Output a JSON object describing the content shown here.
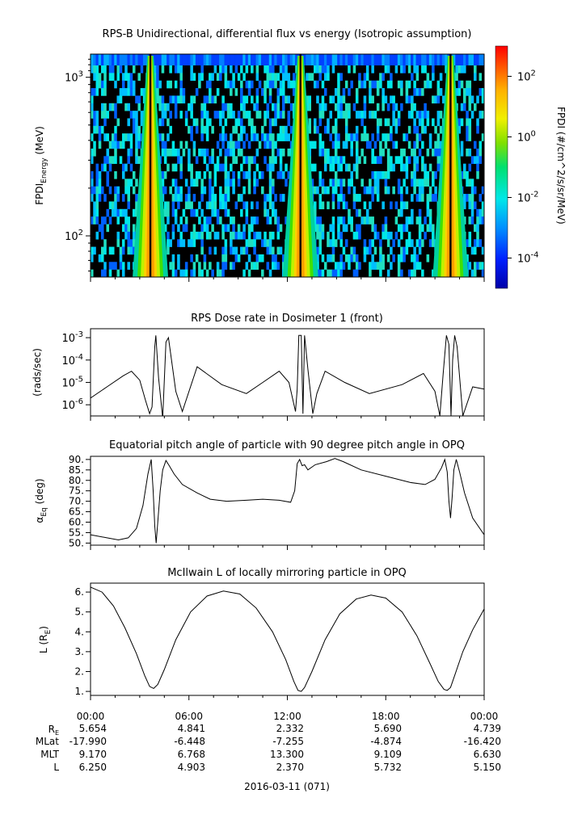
{
  "panels": {
    "spectrogram": {
      "title": "RPS-B  Unidirectional, differential flux vs energy (Isotropic assumption)",
      "ylabel_main": "FPDI",
      "ylabel_sub": "Energy",
      "ylabel_unit": " (MeV)",
      "yticks": [
        {
          "label": "10",
          "exp": "2",
          "value": 100
        },
        {
          "label": "10",
          "exp": "3",
          "value": 1000
        }
      ],
      "colorbar_label": "FPDI (#/cm^2/s/sr/MeV)",
      "colorbar_ticks": [
        {
          "label": "10",
          "exp": "-4",
          "value": -4
        },
        {
          "label": "10",
          "exp": "-2",
          "value": -2
        },
        {
          "label": "10",
          "exp": "0",
          "value": 0
        },
        {
          "label": "10",
          "exp": "2",
          "value": 2
        }
      ]
    },
    "dose": {
      "title": "RPS  Dose rate in Dosimeter 1 (front)",
      "ylabel": "(rads/sec)",
      "yticks": [
        {
          "label": "10",
          "exp": "-6",
          "value": -6
        },
        {
          "label": "10",
          "exp": "-5",
          "value": -5
        },
        {
          "label": "10",
          "exp": "-4",
          "value": -4
        },
        {
          "label": "10",
          "exp": "-3",
          "value": -3
        }
      ]
    },
    "pitch": {
      "title": "Equatorial pitch angle of particle with 90 degree pitch angle in OPQ",
      "ylabel_main": "α",
      "ylabel_sub": "Eq",
      "ylabel_unit": " (deg)",
      "yticks": [
        "50.",
        "55.",
        "60.",
        "65.",
        "70.",
        "75.",
        "80.",
        "85.",
        "90."
      ]
    },
    "lshell": {
      "title": "McIlwain L of locally mirroring particle in OPQ",
      "ylabel_main": "L (R",
      "ylabel_sub": "E",
      "ylabel_unit": ")",
      "yticks": [
        "1.",
        "2.",
        "3.",
        "4.",
        "5.",
        "6."
      ]
    }
  },
  "x_axis": {
    "ticks": [
      "00:00",
      "06:00",
      "12:00",
      "18:00",
      "00:00"
    ],
    "date": "2016-03-11 (071)",
    "ephemeris": [
      {
        "label": "R",
        "sub": "E",
        "values": [
          "5.654",
          "4.841",
          "2.332",
          "5.690",
          "4.739"
        ]
      },
      {
        "label": "MLat",
        "sub": "",
        "values": [
          "-17.990",
          "-6.448",
          "-7.255",
          "-4.874",
          "-16.420"
        ]
      },
      {
        "label": "MLT",
        "sub": "",
        "values": [
          "9.170",
          "6.768",
          "13.300",
          "9.109",
          "6.630"
        ]
      },
      {
        "label": "L",
        "sub": "",
        "values": [
          "6.250",
          "4.903",
          "2.370",
          "5.732",
          "5.150"
        ]
      }
    ]
  },
  "chart_data": [
    {
      "type": "heatmap",
      "title": "RPS-B  Unidirectional, differential flux vs energy (Isotropic assumption)",
      "xlabel": "",
      "ylabel": "FPDI Energy (MeV)",
      "y_scale": "log",
      "ylim": [
        55,
        1400
      ],
      "xlim_hours": [
        0,
        24
      ],
      "colorbar": {
        "label": "FPDI (#/cm^2/s/sr/MeV)",
        "scale": "log",
        "range_exp": [
          -5,
          3
        ]
      },
      "perigee_peaks_hours": [
        3.65,
        12.8,
        21.95
      ]
    },
    {
      "type": "line",
      "title": "RPS  Dose rate in Dosimeter 1 (front)",
      "ylabel": "(rads/sec)",
      "y_scale": "log",
      "ylim_exp": [
        -6.5,
        -2.6
      ],
      "x": [
        0,
        1,
        2,
        2.5,
        3,
        3.35,
        3.6,
        3.75,
        3.85,
        3.92,
        3.98,
        4.15,
        4.4,
        4.6,
        4.75,
        5.2,
        5.6,
        6.5,
        8,
        9.5,
        10.5,
        11.5,
        12.1,
        12.5,
        12.6,
        12.7,
        12.85,
        12.95,
        13.05,
        13.25,
        13.55,
        13.8,
        14.3,
        15.5,
        17,
        19,
        20.3,
        21.0,
        21.3,
        21.5,
        21.7,
        21.85,
        21.98,
        22.08,
        22.2,
        22.35,
        22.7,
        23.3,
        24
      ],
      "values_log10": [
        -5.7,
        -5.2,
        -4.7,
        -4.5,
        -4.9,
        -5.8,
        -6.4,
        -6.1,
        -4.5,
        -3.4,
        -2.9,
        -4.8,
        -6.6,
        -3.2,
        -3.0,
        -5.4,
        -6.3,
        -4.3,
        -5.1,
        -5.5,
        -5.0,
        -4.5,
        -5.0,
        -6.3,
        -5.3,
        -2.9,
        -2.9,
        -6.4,
        -2.9,
        -4.4,
        -6.4,
        -5.5,
        -4.5,
        -5.0,
        -5.5,
        -5.1,
        -4.6,
        -5.4,
        -6.5,
        -4.6,
        -2.9,
        -3.3,
        -6.5,
        -4.0,
        -2.9,
        -3.4,
        -6.5,
        -5.2,
        -5.3
      ],
      "ylabel_note": ""
    },
    {
      "type": "line",
      "title": "Equatorial pitch angle of particle with 90 degree pitch angle in OPQ",
      "ylabel": "α Eq (deg)",
      "ylim": [
        49,
        91.5
      ],
      "x": [
        0,
        1,
        1.7,
        2.3,
        2.8,
        3.2,
        3.5,
        3.7,
        3.82,
        3.92,
        4.0,
        4.1,
        4.25,
        4.4,
        4.6,
        4.8,
        5.1,
        5.6,
        6.5,
        7.3,
        8.3,
        9.5,
        10.5,
        11.5,
        12.2,
        12.45,
        12.6,
        12.75,
        12.9,
        13.05,
        13.25,
        13.7,
        14.4,
        14.9,
        15.4,
        16.5,
        18,
        19.5,
        20.4,
        21.0,
        21.4,
        21.6,
        21.75,
        21.85,
        21.95,
        22.05,
        22.15,
        22.3,
        22.5,
        22.8,
        23.3,
        24
      ],
      "values": [
        54,
        52.5,
        51.5,
        52.5,
        57,
        68,
        83,
        90,
        75,
        58,
        50,
        60,
        75,
        85,
        89.5,
        87,
        83,
        78,
        74,
        71,
        70,
        70.5,
        71,
        70.5,
        69.5,
        75,
        88,
        90,
        87,
        87.5,
        85,
        87.5,
        89,
        90.5,
        89,
        85,
        82,
        79,
        78,
        80.5,
        86,
        90,
        84,
        70,
        62,
        72,
        85,
        90,
        84,
        74,
        62,
        54
      ]
    },
    {
      "type": "line",
      "title": "McIlwain L of locally mirroring particle in OPQ",
      "ylabel": "L (R E)",
      "ylim": [
        0.8,
        6.45
      ],
      "x": [
        0,
        0.7,
        1.4,
        2.1,
        2.8,
        3.3,
        3.6,
        3.85,
        4.1,
        4.5,
        5.2,
        6.1,
        7.1,
        8.1,
        9.1,
        10.1,
        11.1,
        11.9,
        12.4,
        12.65,
        12.85,
        13.05,
        13.5,
        14.3,
        15.2,
        16.2,
        17.1,
        18.0,
        19.0,
        19.9,
        20.7,
        21.2,
        21.55,
        21.75,
        21.95,
        22.2,
        22.7,
        23.3,
        24
      ],
      "values": [
        6.25,
        6.0,
        5.3,
        4.2,
        2.9,
        1.8,
        1.25,
        1.15,
        1.35,
        2.1,
        3.6,
        5.0,
        5.8,
        6.05,
        5.9,
        5.2,
        4.0,
        2.6,
        1.5,
        1.05,
        1.0,
        1.2,
        2.0,
        3.6,
        4.9,
        5.65,
        5.85,
        5.7,
        5.0,
        3.8,
        2.4,
        1.5,
        1.1,
        1.05,
        1.2,
        1.8,
        3.0,
        4.1,
        5.15
      ]
    }
  ],
  "colors": {
    "line": "#000000",
    "axis": "#000000",
    "background": "#ffffff"
  }
}
